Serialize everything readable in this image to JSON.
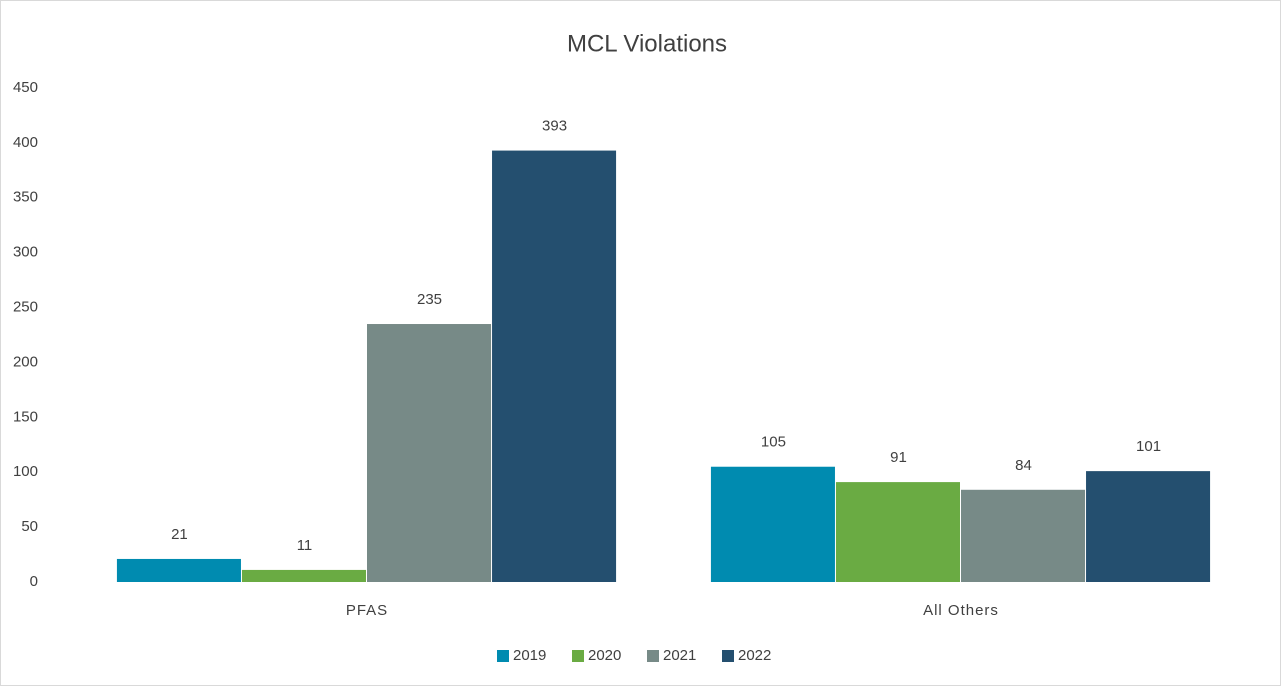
{
  "chart_data": {
    "type": "bar",
    "title": "MCL Violations",
    "categories": [
      "PFAS",
      "All Others"
    ],
    "series": [
      {
        "name": "2019",
        "color": "#008bb0",
        "values": [
          21,
          105
        ]
      },
      {
        "name": "2020",
        "color": "#6aab43",
        "values": [
          11,
          91
        ]
      },
      {
        "name": "2021",
        "color": "#778a87",
        "values": [
          235,
          84
        ]
      },
      {
        "name": "2022",
        "color": "#244f6f",
        "values": [
          393,
          101
        ]
      }
    ],
    "ylim": [
      0,
      450
    ],
    "yticks": [
      0,
      50,
      100,
      150,
      200,
      250,
      300,
      350,
      400,
      450
    ],
    "grid": false,
    "legend": "bottom"
  }
}
